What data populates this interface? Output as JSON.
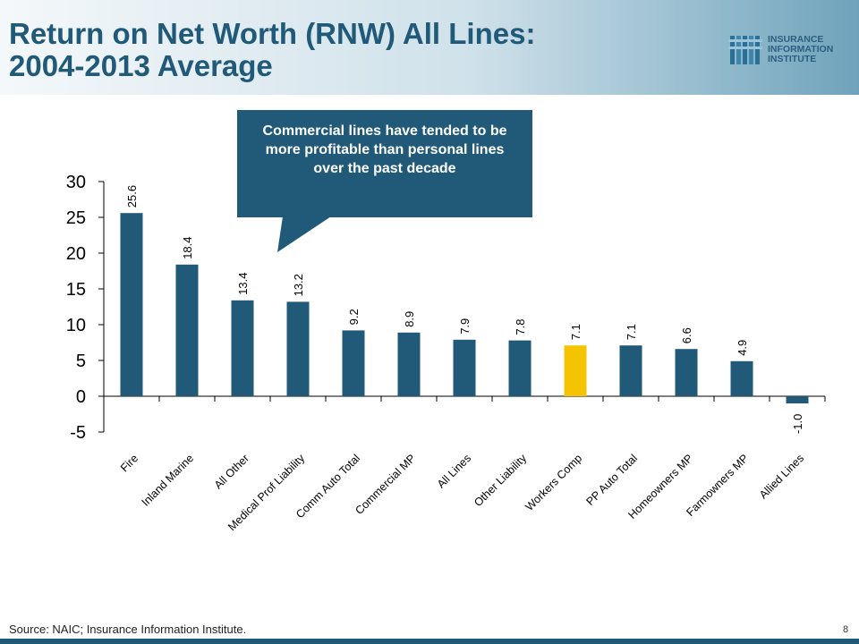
{
  "slide": {
    "title_line1": "Return on Net Worth (RNW) All Lines:",
    "title_line2": "2004-2013 Average",
    "logo_line1": "INSURANCE",
    "logo_line2": "INFORMATION",
    "logo_line3": "INSTITUTE",
    "callout": "Commercial lines have tended to be more profitable than personal lines over the past decade",
    "source": "Source: NAIC; Insurance Information Institute.",
    "page_number": "8"
  },
  "colors": {
    "bar": "#215a79",
    "highlight": "#f5c400",
    "title": "#215a79"
  },
  "chart_data": {
    "type": "bar",
    "title": "",
    "xlabel": "",
    "ylabel": "",
    "categories": [
      "Fire",
      "Inland Marine",
      "All Other",
      "Medical Prof Liability",
      "Comm Auto Total",
      "Commercial MP",
      "All Lines",
      "Other Liability",
      "Workers Comp",
      "PP Auto Total",
      "Homeowners MP",
      "Farmowners MP",
      "Allied Lines"
    ],
    "values": [
      25.6,
      18.4,
      13.4,
      13.2,
      9.2,
      8.9,
      7.9,
      7.8,
      7.1,
      7.1,
      6.6,
      4.9,
      -1.0
    ],
    "labels": [
      "25.6",
      "18.4",
      "13.4",
      "13.2",
      "9.2",
      "8.9",
      "7.9",
      "7.8",
      "7.1",
      "7.1",
      "6.6",
      "4.9",
      "-1.0"
    ],
    "highlight_category": "Workers Comp",
    "ylim": [
      -5,
      30
    ],
    "yticks": [
      -5,
      0,
      5,
      10,
      15,
      20,
      25,
      30
    ],
    "grid": false,
    "legend": "none"
  }
}
